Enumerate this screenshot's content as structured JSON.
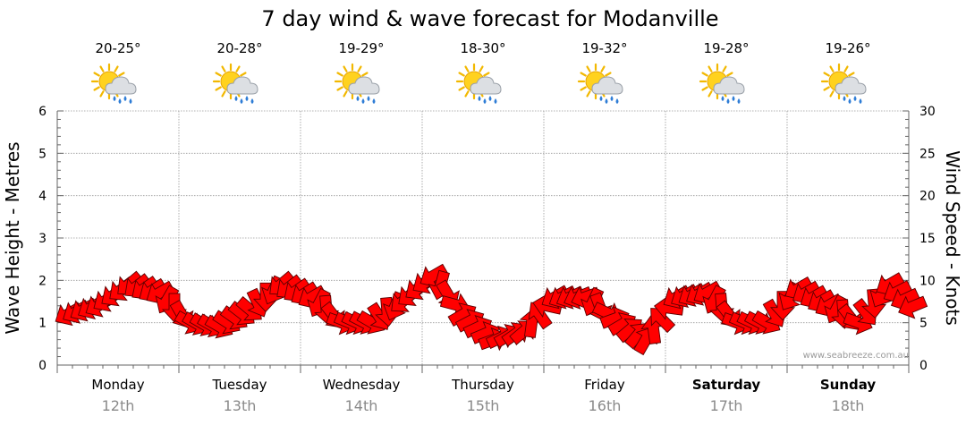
{
  "chart_data": {
    "type": "line",
    "title": "7 day wind & wave forecast for Modanville",
    "ylabel": "Wave Height - Metres",
    "y2label": "Wind Speed - Knots",
    "ylim": [
      0,
      6
    ],
    "y2lim": [
      0,
      30
    ],
    "yticks": [
      "0",
      "1",
      "2",
      "3",
      "4",
      "5",
      "6"
    ],
    "y2ticks": [
      "0",
      "5",
      "10",
      "15",
      "20",
      "25",
      "30"
    ],
    "days": [
      {
        "day": "Monday",
        "date": "12th",
        "temp": "20-25°",
        "icon": "partly-cloudy-rain-icon",
        "bold": false
      },
      {
        "day": "Tuesday",
        "date": "13th",
        "temp": "20-28°",
        "icon": "partly-cloudy-rain-icon",
        "bold": false
      },
      {
        "day": "Wednesday",
        "date": "14th",
        "temp": "19-29°",
        "icon": "partly-cloudy-rain-icon",
        "bold": false
      },
      {
        "day": "Thursday",
        "date": "15th",
        "temp": "18-30°",
        "icon": "partly-cloudy-rain-icon",
        "bold": false
      },
      {
        "day": "Friday",
        "date": "16th",
        "temp": "19-32°",
        "icon": "partly-cloudy-rain-icon",
        "bold": false
      },
      {
        "day": "Saturday",
        "date": "17th",
        "temp": "19-28°",
        "icon": "partly-cloudy-rain-icon",
        "bold": true
      },
      {
        "day": "Sunday",
        "date": "18th",
        "temp": "19-26°",
        "icon": "partly-cloudy-rain-icon",
        "bold": true
      }
    ],
    "wind_series": {
      "name": "Wind Speed (knots)",
      "hours": [
        0,
        6,
        12,
        18,
        24,
        30,
        36,
        42,
        48,
        54,
        60,
        66,
        72,
        78,
        84,
        90,
        96,
        102,
        108,
        114,
        120,
        126,
        132,
        138,
        144,
        150,
        156,
        162,
        168
      ],
      "speed": [
        6,
        7,
        9.5,
        8.5,
        5,
        4.5,
        6.5,
        9.5,
        8,
        5,
        5,
        7.5,
        10.5,
        6,
        3,
        4,
        8,
        8,
        5.5,
        3,
        8,
        8.5,
        5,
        5,
        9,
        7,
        5,
        9.5,
        6
      ],
      "direction": [
        150,
        150,
        140,
        150,
        30,
        30,
        40,
        140,
        150,
        20,
        30,
        140,
        150,
        330,
        340,
        320,
        150,
        160,
        340,
        300,
        150,
        150,
        20,
        30,
        150,
        150,
        20,
        150,
        160
      ]
    },
    "watermark": "www.seabreeze.com.au"
  }
}
